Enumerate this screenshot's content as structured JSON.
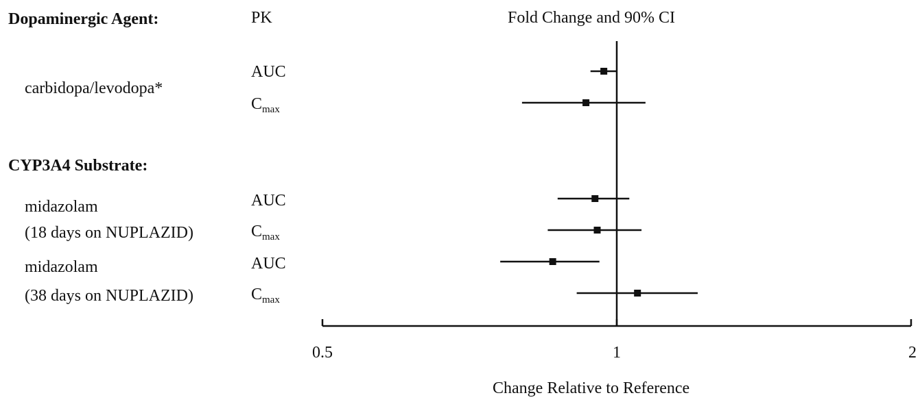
{
  "headers": {
    "agent": "Dopaminergic Agent:",
    "pk": "PK",
    "plot_title": "Fold Change and 90% CI"
  },
  "groups": [
    {
      "heading": "Dopaminergic Agent:",
      "drugs": [
        {
          "label_lines": [
            "carbidopa/levodopa*"
          ],
          "params": [
            "AUC",
            "Cmax"
          ]
        }
      ]
    },
    {
      "heading": "CYP3A4 Substrate:",
      "drugs": [
        {
          "label_lines": [
            "midazolam",
            "(18 days on NUPLAZID)"
          ],
          "params": [
            "AUC",
            "Cmax"
          ]
        },
        {
          "label_lines": [
            "midazolam",
            "(38 days on NUPLAZID)"
          ],
          "params": [
            "AUC",
            "Cmax"
          ]
        }
      ]
    }
  ],
  "pk_labels": {
    "auc": "AUC",
    "cmax_main": "C",
    "cmax_sub": "max"
  },
  "chart_data": {
    "type": "forest",
    "title": "Fold Change and 90% CI",
    "xlabel": "Change Relative to Reference",
    "x_scale": "log2",
    "xlim": [
      0.5,
      2
    ],
    "xticks": [
      0.5,
      1,
      2
    ],
    "xtick_labels": [
      "0.5",
      "1",
      "2"
    ],
    "reference_line": 1,
    "rows": [
      {
        "drug": "carbidopa/levodopa*",
        "param": "AUC",
        "estimate": 0.97,
        "ci": [
          0.94,
          1.0
        ]
      },
      {
        "drug": "carbidopa/levodopa*",
        "param": "Cmax",
        "estimate": 0.93,
        "ci": [
          0.8,
          1.07
        ]
      },
      {
        "drug": "midazolam (18 days on NUPLAZID)",
        "param": "AUC",
        "estimate": 0.95,
        "ci": [
          0.87,
          1.03
        ]
      },
      {
        "drug": "midazolam (18 days on NUPLAZID)",
        "param": "Cmax",
        "estimate": 0.955,
        "ci": [
          0.85,
          1.06
        ]
      },
      {
        "drug": "midazolam (38 days on NUPLAZID)",
        "param": "AUC",
        "estimate": 0.86,
        "ci": [
          0.76,
          0.96
        ]
      },
      {
        "drug": "midazolam (38 days on NUPLAZID)",
        "param": "Cmax",
        "estimate": 1.05,
        "ci": [
          0.91,
          1.21
        ]
      }
    ]
  }
}
